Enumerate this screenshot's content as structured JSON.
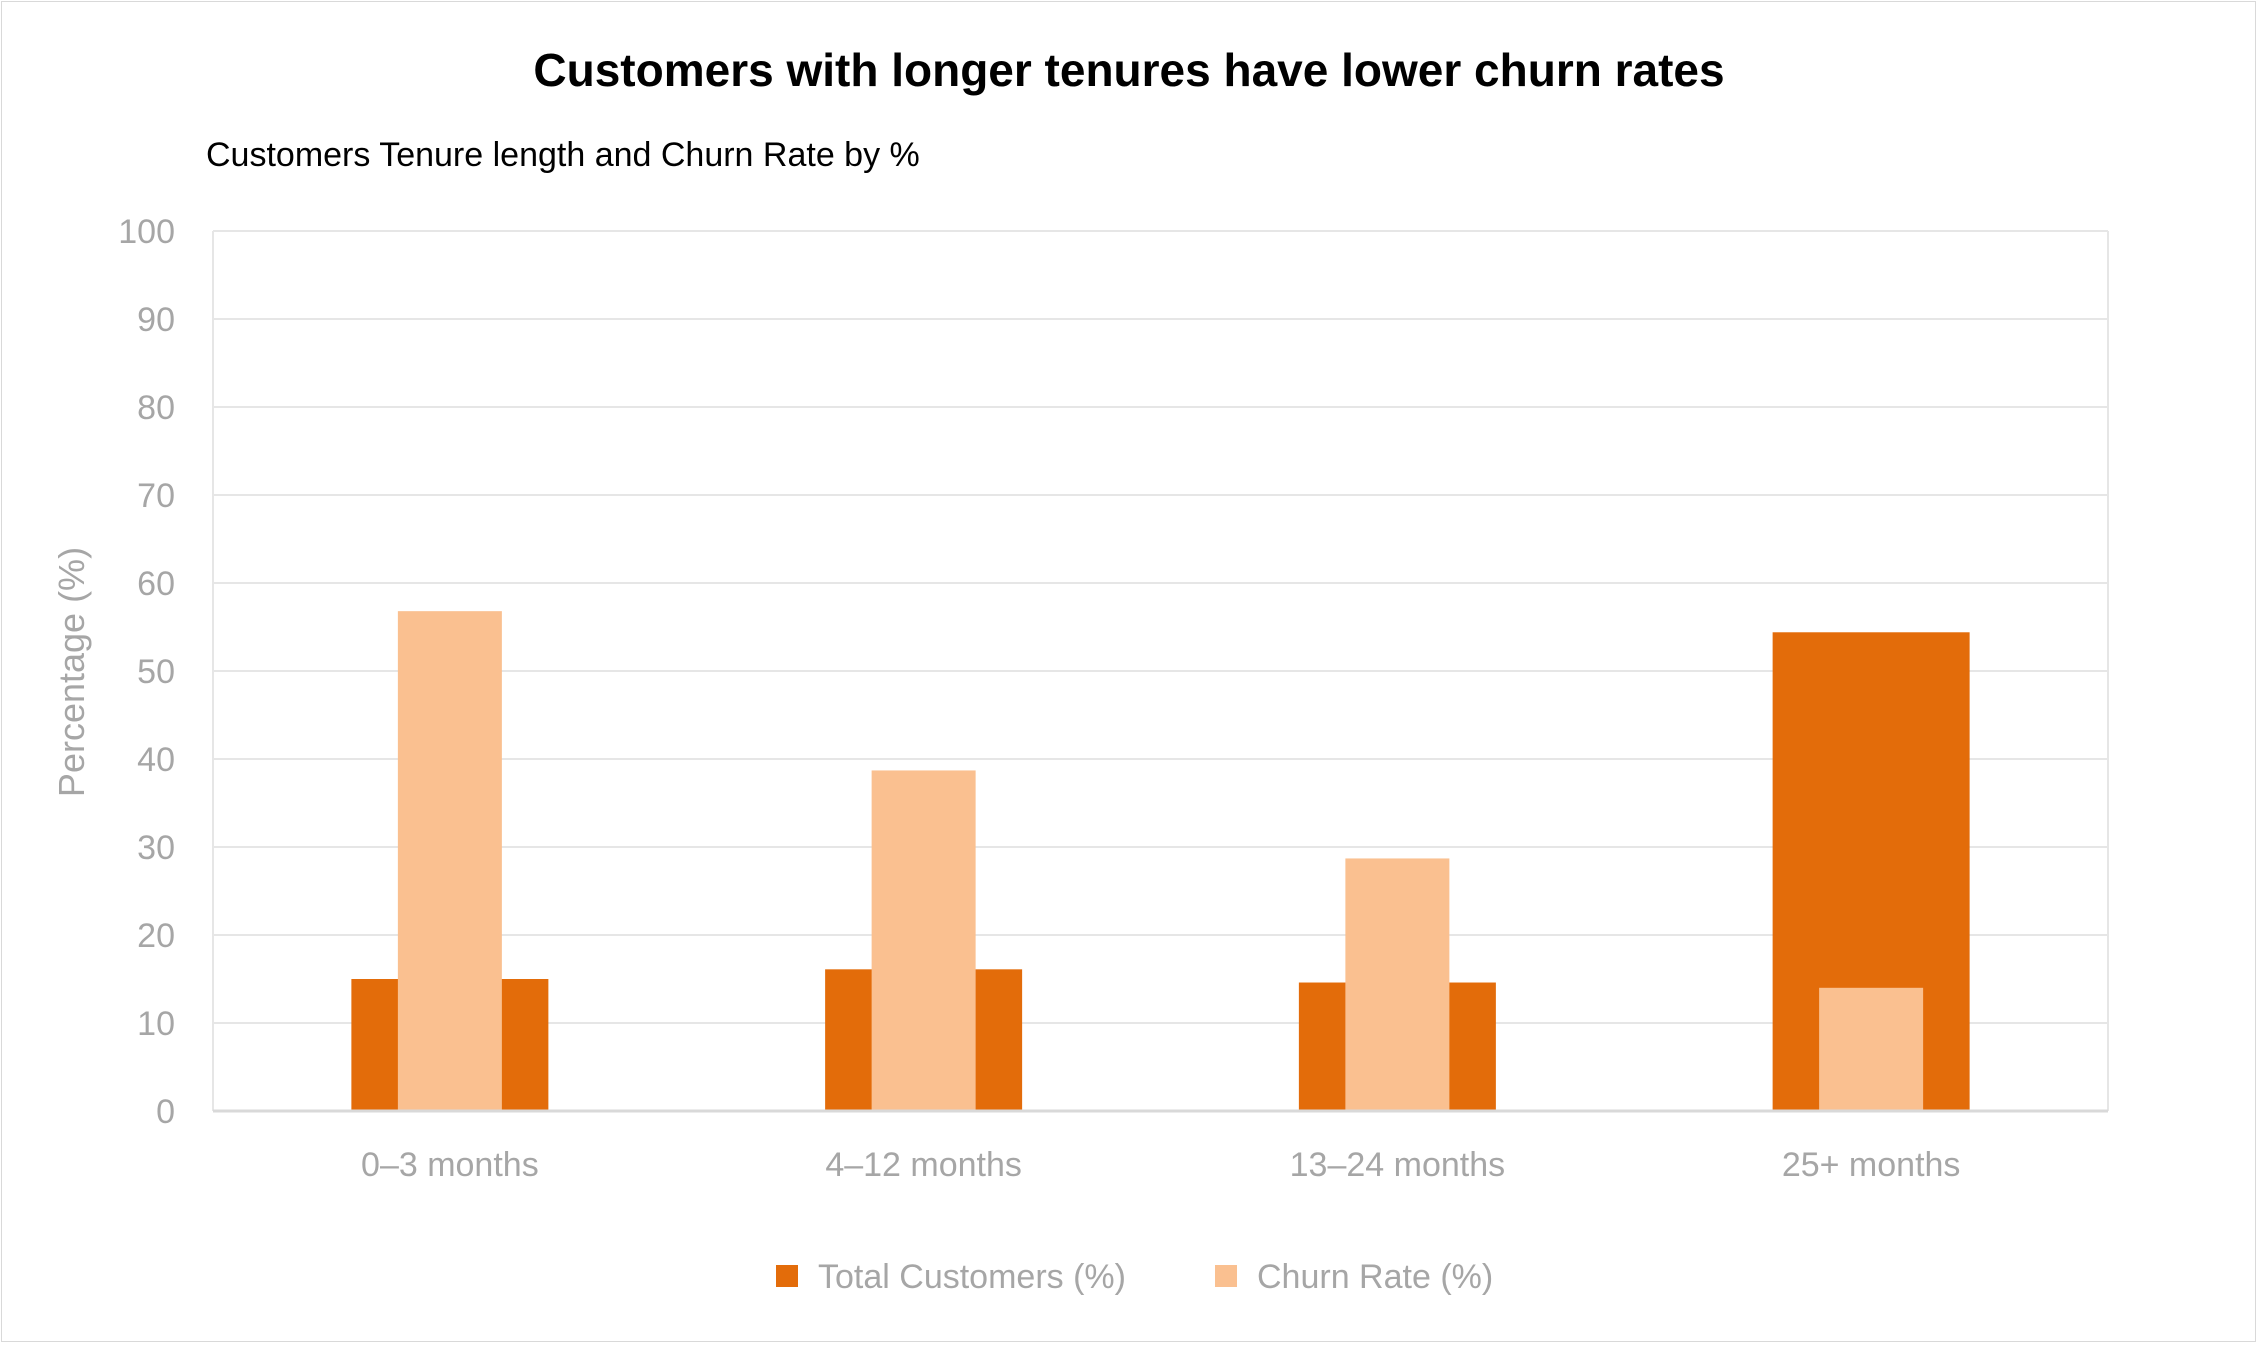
{
  "chart_data": {
    "type": "bar",
    "title": "Customers with longer tenures have lower churn rates",
    "subtitle": "Customers Tenure length and Churn Rate by %",
    "xlabel": "",
    "ylabel": "Percentage (%)",
    "ylim": [
      0,
      100
    ],
    "yticks": [
      "0",
      "10",
      "20",
      "30",
      "40",
      "50",
      "60",
      "70",
      "80",
      "90",
      "100"
    ],
    "categories": [
      "0–3 months",
      "4–12 months",
      "13–24 months",
      "25+ months"
    ],
    "series": [
      {
        "name": "Total Customers (%)",
        "values": [
          15.0,
          16.1,
          14.6,
          54.4
        ],
        "color": "#e36c0a"
      },
      {
        "name": "Churn Rate (%)",
        "values": [
          56.8,
          38.7,
          28.7,
          14.0
        ],
        "color": "#fac090"
      }
    ],
    "grid": true,
    "legend": "bottom",
    "colors": {
      "grid": "#e6e6e6",
      "axis": "#d9d9d9",
      "tick_text": "#a6a6a6",
      "title_text": "#000000"
    }
  }
}
